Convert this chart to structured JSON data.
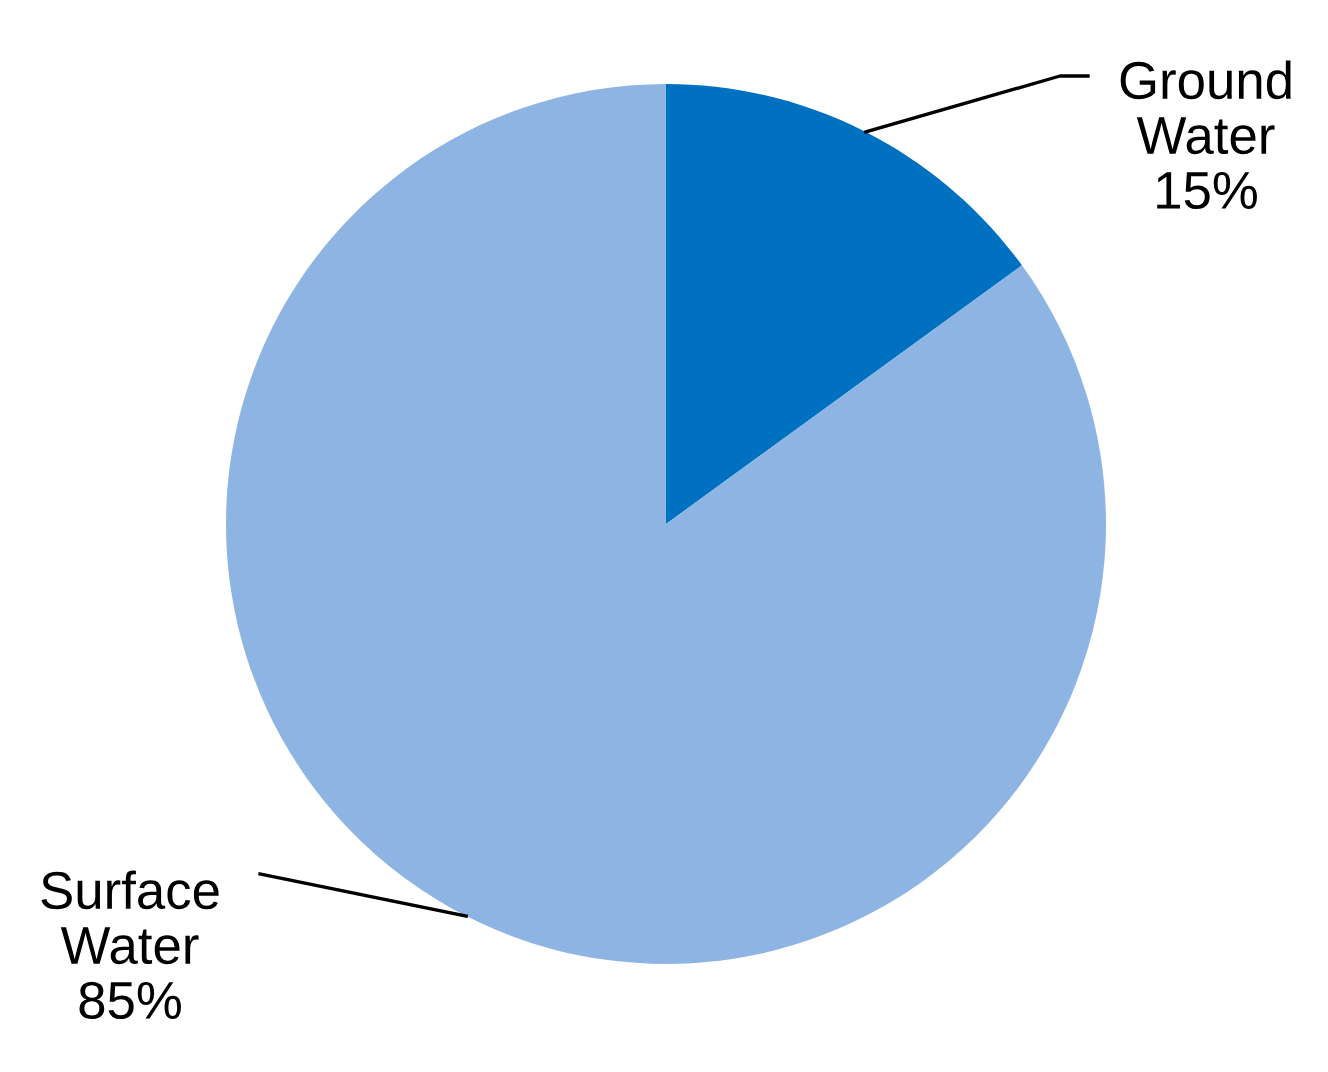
{
  "chart_data": {
    "type": "pie",
    "categories": [
      "Ground Water",
      "Surface Water"
    ],
    "values": [
      15,
      85
    ],
    "colors": [
      "#0070c0",
      "#8eb4e3"
    ],
    "value_labels": [
      "15%",
      "85%"
    ]
  }
}
